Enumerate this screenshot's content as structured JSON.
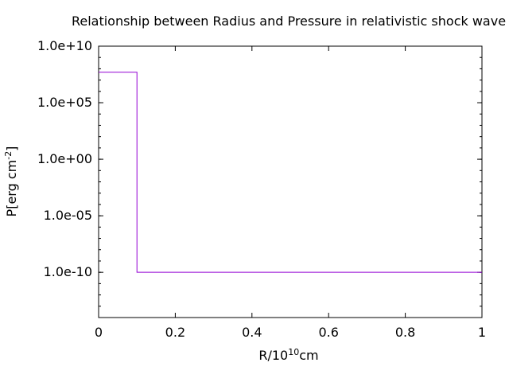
{
  "chart_data": {
    "type": "line",
    "title": "Relationship between Radius and Pressure in relativistic shock wave",
    "xlabel": {
      "text": "R/10",
      "sup": "10",
      "after": "cm"
    },
    "ylabel": {
      "text": "P[erg cm",
      "sup": "-2",
      "after": "]"
    },
    "xscale": "linear",
    "yscale": "log",
    "xlim": [
      0,
      1
    ],
    "ylim": [
      1e-14,
      10000000000.0
    ],
    "x_ticks": [
      {
        "value": 0,
        "label": "0"
      },
      {
        "value": 0.2,
        "label": "0.2"
      },
      {
        "value": 0.4,
        "label": "0.4"
      },
      {
        "value": 0.6,
        "label": "0.6"
      },
      {
        "value": 0.8,
        "label": "0.8"
      },
      {
        "value": 1,
        "label": "1"
      }
    ],
    "y_ticks": [
      {
        "value": 10000000000.0,
        "label": "1.0e+10"
      },
      {
        "value": 100000.0,
        "label": "1.0e+05"
      },
      {
        "value": 1.0,
        "label": "1.0e+00"
      },
      {
        "value": 1e-05,
        "label": "1.0e-05"
      },
      {
        "value": 1e-10,
        "label": "1.0e-10"
      }
    ],
    "grid": false,
    "legend": "none",
    "series": [
      {
        "color": "#9400d3",
        "step": true,
        "points": [
          [
            0,
            50000000.0
          ],
          [
            0.1,
            50000000.0
          ],
          [
            0.1,
            1e-10
          ],
          [
            1,
            1e-10
          ]
        ]
      }
    ]
  }
}
